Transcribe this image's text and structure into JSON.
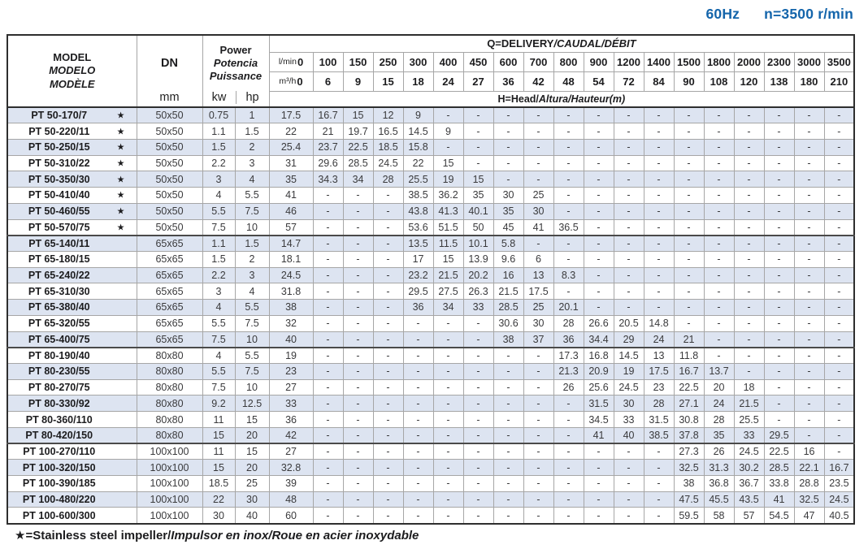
{
  "page": {
    "frequency": "60Hz",
    "speed": "n=3500 r/min",
    "accent_blue": "#1465ab",
    "stripe_color": "#dde4f1",
    "footnote_plain": "★=Stainless steel impeller/",
    "footnote_italic": "Impulsor en inox/Roue en acier inoxydable"
  },
  "table": {
    "header": {
      "model_en": "MODEL",
      "model_es": "MODELO",
      "model_fr": "MODÈLE",
      "dn_label": "DN",
      "dn_unit": "mm",
      "power_en": "Power",
      "power_es": "Potencia",
      "power_fr": "Puissance",
      "power_unit_kw": "kw",
      "power_unit_hp": "hp",
      "delivery_plain": "Q=DELIVERY",
      "delivery_italic": "/CAUDAL/DÉBIT",
      "head_plain": "H=Head/",
      "head_italic": "Altura/Hauteur(m)",
      "lmin_label": "l/min",
      "m3h_label": "m³/h",
      "flow_lmin": [
        "0",
        "100",
        "150",
        "250",
        "300",
        "400",
        "450",
        "600",
        "700",
        "800",
        "900",
        "1200",
        "1400",
        "1500",
        "1800",
        "2000",
        "2300",
        "3000",
        "3500"
      ],
      "flow_m3h": [
        "0",
        "6",
        "9",
        "15",
        "18",
        "24",
        "27",
        "36",
        "42",
        "48",
        "54",
        "72",
        "84",
        "90",
        "108",
        "120",
        "138",
        "180",
        "210"
      ]
    },
    "rows": [
      {
        "model": "PT 50-170/7",
        "star": true,
        "dn": "50x50",
        "kw": "0.75",
        "hp": "1",
        "heads": [
          "17.5",
          "16.7",
          "15",
          "12",
          "9",
          "-",
          "-",
          "-",
          "-",
          "-",
          "-",
          "-",
          "-",
          "-",
          "-",
          "-",
          "-",
          "-",
          "-"
        ]
      },
      {
        "model": "PT 50-220/11",
        "star": true,
        "dn": "50x50",
        "kw": "1.1",
        "hp": "1.5",
        "heads": [
          "22",
          "21",
          "19.7",
          "16.5",
          "14.5",
          "9",
          "-",
          "-",
          "-",
          "-",
          "-",
          "-",
          "-",
          "-",
          "-",
          "-",
          "-",
          "-",
          "-"
        ]
      },
      {
        "model": "PT 50-250/15",
        "star": true,
        "dn": "50x50",
        "kw": "1.5",
        "hp": "2",
        "heads": [
          "25.4",
          "23.7",
          "22.5",
          "18.5",
          "15.8",
          "-",
          "-",
          "-",
          "-",
          "-",
          "-",
          "-",
          "-",
          "-",
          "-",
          "-",
          "-",
          "-",
          "-"
        ]
      },
      {
        "model": "PT 50-310/22",
        "star": true,
        "dn": "50x50",
        "kw": "2.2",
        "hp": "3",
        "heads": [
          "31",
          "29.6",
          "28.5",
          "24.5",
          "22",
          "15",
          "-",
          "-",
          "-",
          "-",
          "-",
          "-",
          "-",
          "-",
          "-",
          "-",
          "-",
          "-",
          "-"
        ]
      },
      {
        "model": "PT 50-350/30",
        "star": true,
        "dn": "50x50",
        "kw": "3",
        "hp": "4",
        "heads": [
          "35",
          "34.3",
          "34",
          "28",
          "25.5",
          "19",
          "15",
          "-",
          "-",
          "-",
          "-",
          "-",
          "-",
          "-",
          "-",
          "-",
          "-",
          "-",
          "-"
        ]
      },
      {
        "model": "PT 50-410/40",
        "star": true,
        "dn": "50x50",
        "kw": "4",
        "hp": "5.5",
        "heads": [
          "41",
          "-",
          "-",
          "-",
          "38.5",
          "36.2",
          "35",
          "30",
          "25",
          "-",
          "-",
          "-",
          "-",
          "-",
          "-",
          "-",
          "-",
          "-",
          "-"
        ]
      },
      {
        "model": "PT 50-460/55",
        "star": true,
        "dn": "50x50",
        "kw": "5.5",
        "hp": "7.5",
        "heads": [
          "46",
          "-",
          "-",
          "-",
          "43.8",
          "41.3",
          "40.1",
          "35",
          "30",
          "-",
          "-",
          "-",
          "-",
          "-",
          "-",
          "-",
          "-",
          "-",
          "-"
        ]
      },
      {
        "model": "PT 50-570/75",
        "star": true,
        "dn": "50x50",
        "kw": "7.5",
        "hp": "10",
        "heads": [
          "57",
          "-",
          "-",
          "-",
          "53.6",
          "51.5",
          "50",
          "45",
          "41",
          "36.5",
          "-",
          "-",
          "-",
          "-",
          "-",
          "-",
          "-",
          "-",
          "-"
        ]
      },
      {
        "model": "PT 65-140/11",
        "star": false,
        "dn": "65x65",
        "kw": "1.1",
        "hp": "1.5",
        "heads": [
          "14.7",
          "-",
          "-",
          "-",
          "13.5",
          "11.5",
          "10.1",
          "5.8",
          "-",
          "-",
          "-",
          "-",
          "-",
          "-",
          "-",
          "-",
          "-",
          "-",
          "-"
        ]
      },
      {
        "model": "PT 65-180/15",
        "star": false,
        "dn": "65x65",
        "kw": "1.5",
        "hp": "2",
        "heads": [
          "18.1",
          "-",
          "-",
          "-",
          "17",
          "15",
          "13.9",
          "9.6",
          "6",
          "-",
          "-",
          "-",
          "-",
          "-",
          "-",
          "-",
          "-",
          "-",
          "-"
        ]
      },
      {
        "model": "PT 65-240/22",
        "star": false,
        "dn": "65x65",
        "kw": "2.2",
        "hp": "3",
        "heads": [
          "24.5",
          "-",
          "-",
          "-",
          "23.2",
          "21.5",
          "20.2",
          "16",
          "13",
          "8.3",
          "-",
          "-",
          "-",
          "-",
          "-",
          "-",
          "-",
          "-",
          "-"
        ]
      },
      {
        "model": "PT 65-310/30",
        "star": false,
        "dn": "65x65",
        "kw": "3",
        "hp": "4",
        "heads": [
          "31.8",
          "-",
          "-",
          "-",
          "29.5",
          "27.5",
          "26.3",
          "21.5",
          "17.5",
          "-",
          "-",
          "-",
          "-",
          "-",
          "-",
          "-",
          "-",
          "-",
          "-"
        ]
      },
      {
        "model": "PT 65-380/40",
        "star": false,
        "dn": "65x65",
        "kw": "4",
        "hp": "5.5",
        "heads": [
          "38",
          "-",
          "-",
          "-",
          "36",
          "34",
          "33",
          "28.5",
          "25",
          "20.1",
          "-",
          "-",
          "-",
          "-",
          "-",
          "-",
          "-",
          "-",
          "-"
        ]
      },
      {
        "model": "PT 65-320/55",
        "star": false,
        "dn": "65x65",
        "kw": "5.5",
        "hp": "7.5",
        "heads": [
          "32",
          "-",
          "-",
          "-",
          "-",
          "-",
          "-",
          "30.6",
          "30",
          "28",
          "26.6",
          "20.5",
          "14.8",
          "-",
          "-",
          "-",
          "-",
          "-",
          "-"
        ]
      },
      {
        "model": "PT 65-400/75",
        "star": false,
        "dn": "65x65",
        "kw": "7.5",
        "hp": "10",
        "heads": [
          "40",
          "-",
          "-",
          "-",
          "-",
          "-",
          "-",
          "38",
          "37",
          "36",
          "34.4",
          "29",
          "24",
          "21",
          "-",
          "-",
          "-",
          "-",
          "-"
        ]
      },
      {
        "model": "PT 80-190/40",
        "star": false,
        "dn": "80x80",
        "kw": "4",
        "hp": "5.5",
        "heads": [
          "19",
          "-",
          "-",
          "-",
          "-",
          "-",
          "-",
          "-",
          "-",
          "17.3",
          "16.8",
          "14.5",
          "13",
          "11.8",
          "-",
          "-",
          "-",
          "-",
          "-"
        ]
      },
      {
        "model": "PT 80-230/55",
        "star": false,
        "dn": "80x80",
        "kw": "5.5",
        "hp": "7.5",
        "heads": [
          "23",
          "-",
          "-",
          "-",
          "-",
          "-",
          "-",
          "-",
          "-",
          "21.3",
          "20.9",
          "19",
          "17.5",
          "16.7",
          "13.7",
          "-",
          "-",
          "-",
          "-"
        ]
      },
      {
        "model": "PT 80-270/75",
        "star": false,
        "dn": "80x80",
        "kw": "7.5",
        "hp": "10",
        "heads": [
          "27",
          "-",
          "-",
          "-",
          "-",
          "-",
          "-",
          "-",
          "-",
          "26",
          "25.6",
          "24.5",
          "23",
          "22.5",
          "20",
          "18",
          "-",
          "-",
          "-"
        ]
      },
      {
        "model": "PT 80-330/92",
        "star": false,
        "dn": "80x80",
        "kw": "9.2",
        "hp": "12.5",
        "heads": [
          "33",
          "-",
          "-",
          "-",
          "-",
          "-",
          "-",
          "-",
          "-",
          "-",
          "31.5",
          "30",
          "28",
          "27.1",
          "24",
          "21.5",
          "-",
          "-",
          "-"
        ]
      },
      {
        "model": "PT 80-360/110",
        "star": false,
        "dn": "80x80",
        "kw": "11",
        "hp": "15",
        "heads": [
          "36",
          "-",
          "-",
          "-",
          "-",
          "-",
          "-",
          "-",
          "-",
          "-",
          "34.5",
          "33",
          "31.5",
          "30.8",
          "28",
          "25.5",
          "-",
          "-",
          "-"
        ]
      },
      {
        "model": "PT 80-420/150",
        "star": false,
        "dn": "80x80",
        "kw": "15",
        "hp": "20",
        "heads": [
          "42",
          "-",
          "-",
          "-",
          "-",
          "-",
          "-",
          "-",
          "-",
          "-",
          "41",
          "40",
          "38.5",
          "37.8",
          "35",
          "33",
          "29.5",
          "-",
          "-"
        ]
      },
      {
        "model": "PT 100-270/110",
        "star": false,
        "dn": "100x100",
        "kw": "11",
        "hp": "15",
        "heads": [
          "27",
          "-",
          "-",
          "-",
          "-",
          "-",
          "-",
          "-",
          "-",
          "-",
          "-",
          "-",
          "-",
          "27.3",
          "26",
          "24.5",
          "22.5",
          "16",
          "-"
        ]
      },
      {
        "model": "PT 100-320/150",
        "star": false,
        "dn": "100x100",
        "kw": "15",
        "hp": "20",
        "heads": [
          "32.8",
          "-",
          "-",
          "-",
          "-",
          "-",
          "-",
          "-",
          "-",
          "-",
          "-",
          "-",
          "-",
          "32.5",
          "31.3",
          "30.2",
          "28.5",
          "22.1",
          "16.7"
        ]
      },
      {
        "model": "PT 100-390/185",
        "star": false,
        "dn": "100x100",
        "kw": "18.5",
        "hp": "25",
        "heads": [
          "39",
          "-",
          "-",
          "-",
          "-",
          "-",
          "-",
          "-",
          "-",
          "-",
          "-",
          "-",
          "-",
          "38",
          "36.8",
          "36.7",
          "33.8",
          "28.8",
          "23.5"
        ]
      },
      {
        "model": "PT 100-480/220",
        "star": false,
        "dn": "100x100",
        "kw": "22",
        "hp": "30",
        "heads": [
          "48",
          "-",
          "-",
          "-",
          "-",
          "-",
          "-",
          "-",
          "-",
          "-",
          "-",
          "-",
          "-",
          "47.5",
          "45.5",
          "43.5",
          "41",
          "32.5",
          "24.5"
        ]
      },
      {
        "model": "PT 100-600/300",
        "star": false,
        "dn": "100x100",
        "kw": "30",
        "hp": "40",
        "heads": [
          "60",
          "-",
          "-",
          "-",
          "-",
          "-",
          "-",
          "-",
          "-",
          "-",
          "-",
          "-",
          "-",
          "59.5",
          "58",
          "57",
          "54.5",
          "47",
          "40.5"
        ]
      }
    ]
  }
}
